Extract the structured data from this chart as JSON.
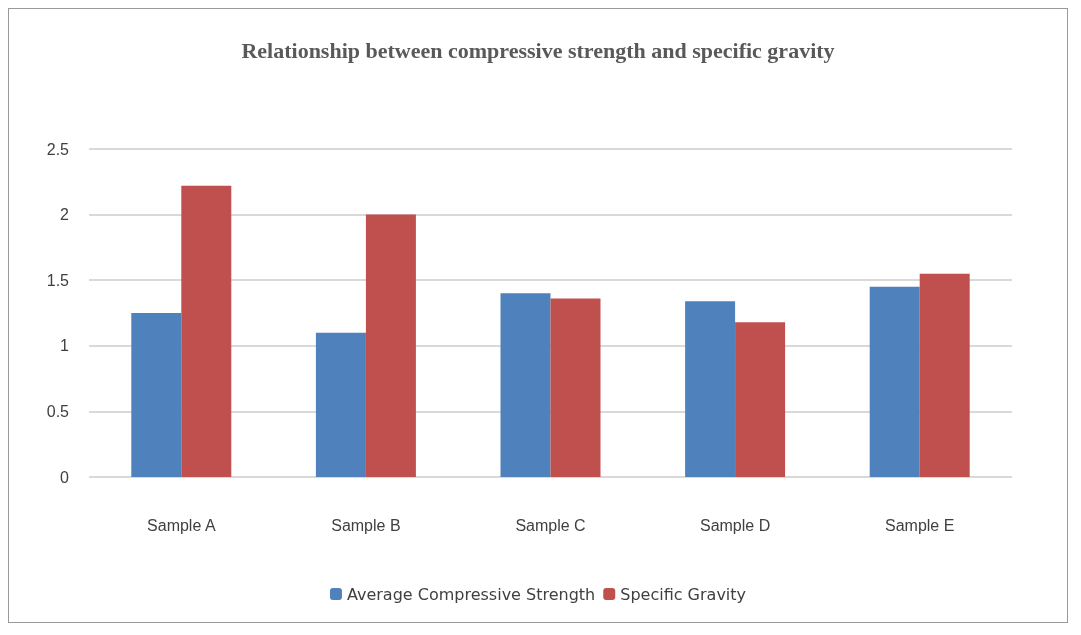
{
  "chart_data": {
    "type": "bar",
    "title": "Relationship between compressive strength and specific gravity",
    "categories": [
      "Sample A",
      "Sample B",
      "Sample C",
      "Sample D",
      "Sample E"
    ],
    "series": [
      {
        "name": "Average Compressive Strength",
        "color": "#4f81bd",
        "values": [
          1.25,
          1.1,
          1.4,
          1.34,
          1.45
        ]
      },
      {
        "name": "Specific Gravity",
        "color": "#c0504d",
        "values": [
          2.22,
          2.0,
          1.36,
          1.18,
          1.55
        ]
      }
    ],
    "ylim": [
      0,
      2.5
    ],
    "yticks": [
      0,
      0.5,
      1,
      1.5,
      2,
      2.5
    ],
    "grid": "y",
    "legend": "bottom"
  }
}
